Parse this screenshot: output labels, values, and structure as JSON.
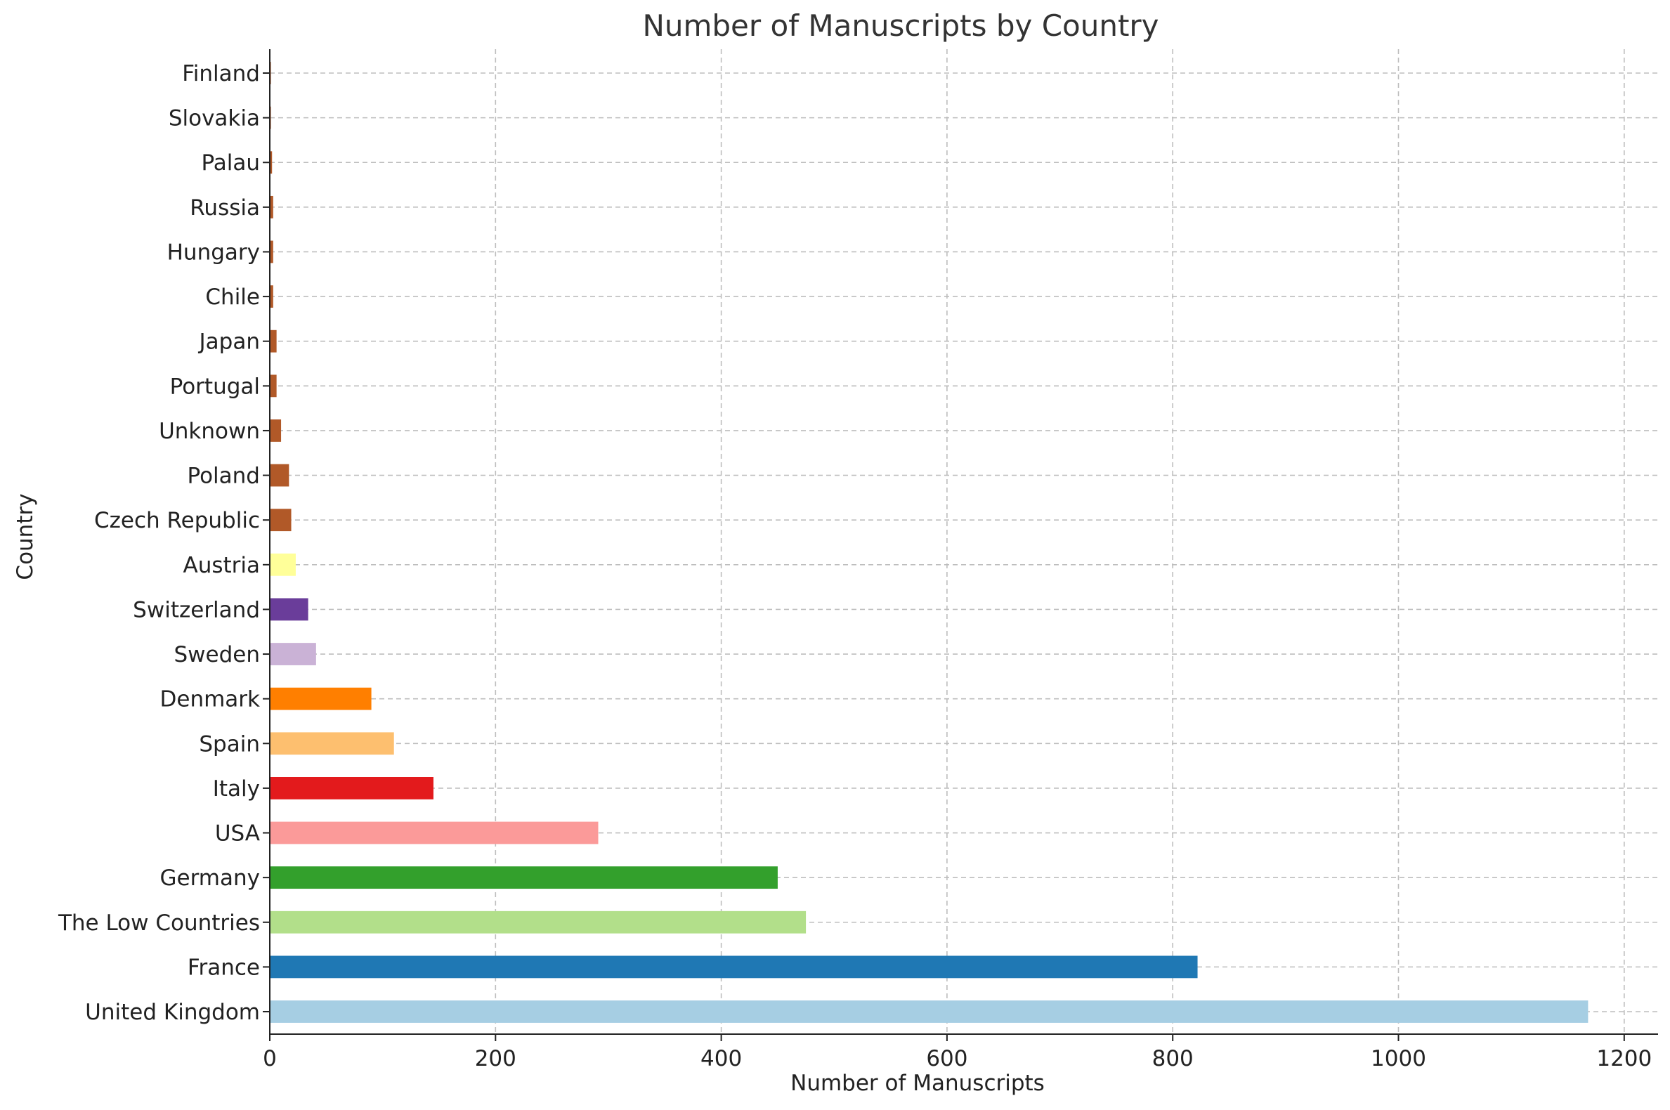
{
  "chart_data": {
    "type": "bar",
    "orientation": "horizontal",
    "title": "Number of Manuscripts by Country",
    "xlabel": "Number of Manuscripts",
    "ylabel": "Country",
    "xlim": [
      0,
      1230
    ],
    "xticks": [
      0,
      200,
      400,
      600,
      800,
      1000,
      1200
    ],
    "grid": true,
    "categories": [
      "United Kingdom",
      "France",
      "The Low Countries",
      "Germany",
      "USA",
      "Italy",
      "Spain",
      "Denmark",
      "Sweden",
      "Switzerland",
      "Austria",
      "Czech Republic",
      "Poland",
      "Unknown",
      "Portugal",
      "Japan",
      "Chile",
      "Hungary",
      "Russia",
      "Palau",
      "Slovakia",
      "Finland"
    ],
    "values": [
      1168,
      822,
      475,
      450,
      291,
      145,
      110,
      90,
      41,
      34,
      23,
      19,
      17,
      10,
      6,
      6,
      3,
      3,
      3,
      2,
      1,
      1
    ],
    "colors": [
      "#a6cee3",
      "#1f78b4",
      "#b2df8a",
      "#33a02c",
      "#fb9a99",
      "#e31a1c",
      "#fdbf6f",
      "#ff7f00",
      "#cab2d6",
      "#6a3d9a",
      "#ffff99",
      "#b15928",
      "#b15928",
      "#b15928",
      "#b15928",
      "#b15928",
      "#b15928",
      "#b15928",
      "#b15928",
      "#b15928",
      "#b15928",
      "#b15928"
    ]
  }
}
